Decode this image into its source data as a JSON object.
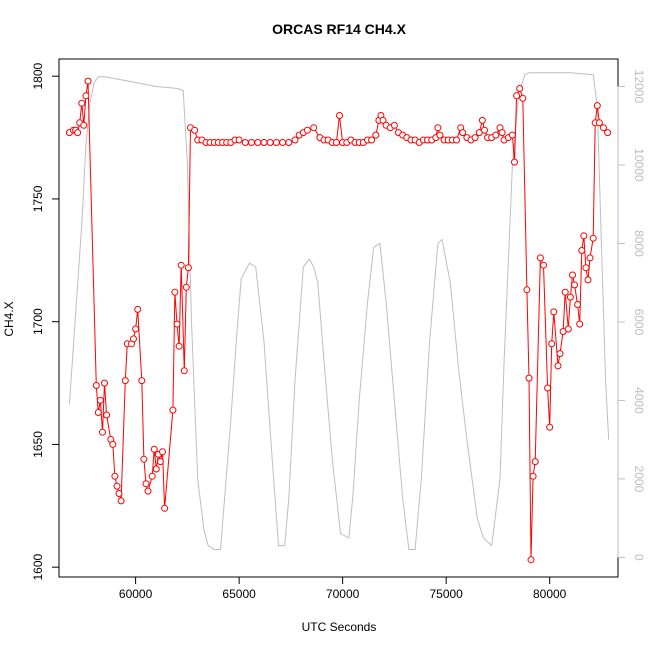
{
  "chart_data": {
    "type": "line",
    "title": "ORCAS RF14 CH4.X",
    "xlabel": "UTC Seconds",
    "ylabel": "CH4.X",
    "xlim": [
      56300,
      83300
    ],
    "ylim": [
      1596,
      1807
    ],
    "y2lim": [
      -500,
      12700
    ],
    "x_ticks": [
      60000,
      65000,
      70000,
      75000,
      80000
    ],
    "y_ticks": [
      1600,
      1650,
      1700,
      1750,
      1800
    ],
    "y2_ticks": [
      0,
      2000,
      4000,
      6000,
      8000,
      10000,
      12000
    ],
    "colors": {
      "primary": "#ff0000",
      "secondary": "#bebebe"
    },
    "series": [
      {
        "role": "primary",
        "points": [
          [
            56800,
            1777
          ],
          [
            57000,
            1778
          ],
          [
            57100,
            1778
          ],
          [
            57200,
            1777
          ],
          [
            57300,
            1781
          ],
          [
            57400,
            1789
          ],
          [
            57500,
            1780
          ],
          [
            57600,
            1792
          ],
          [
            57700,
            1798
          ],
          [
            58100,
            1674
          ],
          [
            58200,
            1663
          ],
          [
            58300,
            1668
          ],
          [
            58400,
            1655
          ],
          [
            58500,
            1675
          ],
          [
            58600,
            1662
          ],
          [
            58800,
            1652
          ],
          [
            58900,
            1650
          ],
          [
            59000,
            1637
          ],
          [
            59100,
            1633
          ],
          [
            59200,
            1630
          ],
          [
            59300,
            1627
          ],
          [
            59500,
            1676
          ],
          [
            59600,
            1691
          ],
          [
            59800,
            1691
          ],
          [
            59900,
            1693
          ],
          [
            60000,
            1697
          ],
          [
            60100,
            1705
          ],
          [
            60300,
            1676
          ],
          [
            60400,
            1644
          ],
          [
            60500,
            1634
          ],
          [
            60600,
            1631
          ],
          [
            60800,
            1637
          ],
          [
            60900,
            1648
          ],
          [
            61000,
            1640
          ],
          [
            61100,
            1646
          ],
          [
            61200,
            1643
          ],
          [
            61300,
            1647
          ],
          [
            61400,
            1624
          ],
          [
            61800,
            1664
          ],
          [
            61900,
            1712
          ],
          [
            62000,
            1699
          ],
          [
            62100,
            1690
          ],
          [
            62200,
            1723
          ],
          [
            62350,
            1680
          ],
          [
            62450,
            1714
          ],
          [
            62550,
            1722
          ],
          [
            62650,
            1779
          ],
          [
            62850,
            1778
          ],
          [
            63000,
            1774
          ],
          [
            63200,
            1774
          ],
          [
            63400,
            1773
          ],
          [
            63600,
            1773
          ],
          [
            63800,
            1773
          ],
          [
            64000,
            1773
          ],
          [
            64200,
            1773
          ],
          [
            64400,
            1773
          ],
          [
            64600,
            1773
          ],
          [
            64800,
            1774
          ],
          [
            65000,
            1774
          ],
          [
            65300,
            1773
          ],
          [
            65600,
            1773
          ],
          [
            65900,
            1773
          ],
          [
            66200,
            1773
          ],
          [
            66500,
            1773
          ],
          [
            66800,
            1773
          ],
          [
            67100,
            1773
          ],
          [
            67400,
            1773
          ],
          [
            67700,
            1774
          ],
          [
            67900,
            1776
          ],
          [
            68100,
            1777
          ],
          [
            68300,
            1778
          ],
          [
            68600,
            1779
          ],
          [
            68900,
            1775
          ],
          [
            69100,
            1774
          ],
          [
            69300,
            1774
          ],
          [
            69500,
            1773
          ],
          [
            69700,
            1773
          ],
          [
            69850,
            1784
          ],
          [
            70000,
            1773
          ],
          [
            70200,
            1773
          ],
          [
            70400,
            1774
          ],
          [
            70600,
            1773
          ],
          [
            70800,
            1773
          ],
          [
            71000,
            1773
          ],
          [
            71200,
            1774
          ],
          [
            71400,
            1774
          ],
          [
            71600,
            1776
          ],
          [
            71750,
            1782
          ],
          [
            71850,
            1784
          ],
          [
            71950,
            1782
          ],
          [
            72100,
            1780
          ],
          [
            72300,
            1779
          ],
          [
            72500,
            1780
          ],
          [
            72700,
            1777
          ],
          [
            72900,
            1776
          ],
          [
            73100,
            1775
          ],
          [
            73300,
            1774
          ],
          [
            73500,
            1774
          ],
          [
            73700,
            1773
          ],
          [
            73900,
            1774
          ],
          [
            74100,
            1774
          ],
          [
            74300,
            1774
          ],
          [
            74500,
            1775
          ],
          [
            74600,
            1779
          ],
          [
            74700,
            1776
          ],
          [
            74900,
            1774
          ],
          [
            75100,
            1774
          ],
          [
            75300,
            1774
          ],
          [
            75500,
            1774
          ],
          [
            75700,
            1779
          ],
          [
            75800,
            1777
          ],
          [
            76000,
            1775
          ],
          [
            76200,
            1774
          ],
          [
            76400,
            1775
          ],
          [
            76600,
            1777
          ],
          [
            76750,
            1782
          ],
          [
            76850,
            1778
          ],
          [
            77000,
            1775
          ],
          [
            77200,
            1775
          ],
          [
            77400,
            1776
          ],
          [
            77600,
            1779
          ],
          [
            77700,
            1777
          ],
          [
            77800,
            1774
          ],
          [
            78000,
            1775
          ],
          [
            78200,
            1776
          ],
          [
            78300,
            1765
          ],
          [
            78400,
            1792
          ],
          [
            78550,
            1795
          ],
          [
            78700,
            1791
          ],
          [
            78900,
            1713
          ],
          [
            79000,
            1677
          ],
          [
            79100,
            1603
          ],
          [
            79200,
            1637
          ],
          [
            79300,
            1643
          ],
          [
            79550,
            1726
          ],
          [
            79700,
            1723
          ],
          [
            79900,
            1673
          ],
          [
            80000,
            1657
          ],
          [
            80100,
            1691
          ],
          [
            80200,
            1704
          ],
          [
            80400,
            1682
          ],
          [
            80500,
            1687
          ],
          [
            80650,
            1696
          ],
          [
            80750,
            1712
          ],
          [
            80900,
            1697
          ],
          [
            81000,
            1710
          ],
          [
            81100,
            1719
          ],
          [
            81200,
            1715
          ],
          [
            81350,
            1707
          ],
          [
            81450,
            1699
          ],
          [
            81550,
            1729
          ],
          [
            81650,
            1735
          ],
          [
            81750,
            1722
          ],
          [
            81850,
            1717
          ],
          [
            81950,
            1726
          ],
          [
            82100,
            1734
          ],
          [
            82200,
            1781
          ],
          [
            82300,
            1788
          ],
          [
            82400,
            1781
          ],
          [
            82600,
            1779
          ],
          [
            82800,
            1777
          ]
        ]
      },
      {
        "role": "secondary",
        "points": [
          [
            56800,
            3900
          ],
          [
            57400,
            8500
          ],
          [
            57600,
            10500
          ],
          [
            57800,
            11600
          ],
          [
            58000,
            12100
          ],
          [
            58200,
            12250
          ],
          [
            58500,
            12250
          ],
          [
            59000,
            12200
          ],
          [
            60000,
            12100
          ],
          [
            61000,
            12000
          ],
          [
            62000,
            11950
          ],
          [
            62300,
            11900
          ],
          [
            62500,
            10000
          ],
          [
            62700,
            6000
          ],
          [
            63000,
            2000
          ],
          [
            63300,
            700
          ],
          [
            63500,
            300
          ],
          [
            63800,
            200
          ],
          [
            64100,
            200
          ],
          [
            64300,
            1500
          ],
          [
            64600,
            3500
          ],
          [
            64900,
            5800
          ],
          [
            65100,
            7100
          ],
          [
            65300,
            7300
          ],
          [
            65500,
            7500
          ],
          [
            65800,
            7400
          ],
          [
            66200,
            5500
          ],
          [
            66600,
            2500
          ],
          [
            66900,
            300
          ],
          [
            67200,
            300
          ],
          [
            67400,
            1500
          ],
          [
            67700,
            4500
          ],
          [
            68100,
            7400
          ],
          [
            68400,
            7600
          ],
          [
            68600,
            7400
          ],
          [
            68800,
            7000
          ],
          [
            69100,
            5000
          ],
          [
            69500,
            2500
          ],
          [
            69900,
            600
          ],
          [
            70300,
            500
          ],
          [
            70500,
            1600
          ],
          [
            70800,
            4000
          ],
          [
            71200,
            6500
          ],
          [
            71500,
            7900
          ],
          [
            71800,
            8000
          ],
          [
            72100,
            6500
          ],
          [
            72500,
            4000
          ],
          [
            72900,
            1500
          ],
          [
            73200,
            200
          ],
          [
            73500,
            200
          ],
          [
            73800,
            2000
          ],
          [
            74200,
            5500
          ],
          [
            74600,
            8000
          ],
          [
            74800,
            8100
          ],
          [
            75200,
            7000
          ],
          [
            75600,
            4800
          ],
          [
            76000,
            3000
          ],
          [
            76500,
            1000
          ],
          [
            76800,
            500
          ],
          [
            77200,
            300
          ],
          [
            77600,
            2000
          ],
          [
            77800,
            5000
          ],
          [
            78000,
            7500
          ],
          [
            78200,
            10000
          ],
          [
            78500,
            11800
          ],
          [
            78800,
            12300
          ],
          [
            79000,
            12350
          ],
          [
            80000,
            12350
          ],
          [
            81000,
            12350
          ],
          [
            82100,
            12300
          ],
          [
            82300,
            11500
          ],
          [
            82500,
            8000
          ],
          [
            82700,
            4500
          ],
          [
            82850,
            3000
          ]
        ]
      }
    ]
  }
}
